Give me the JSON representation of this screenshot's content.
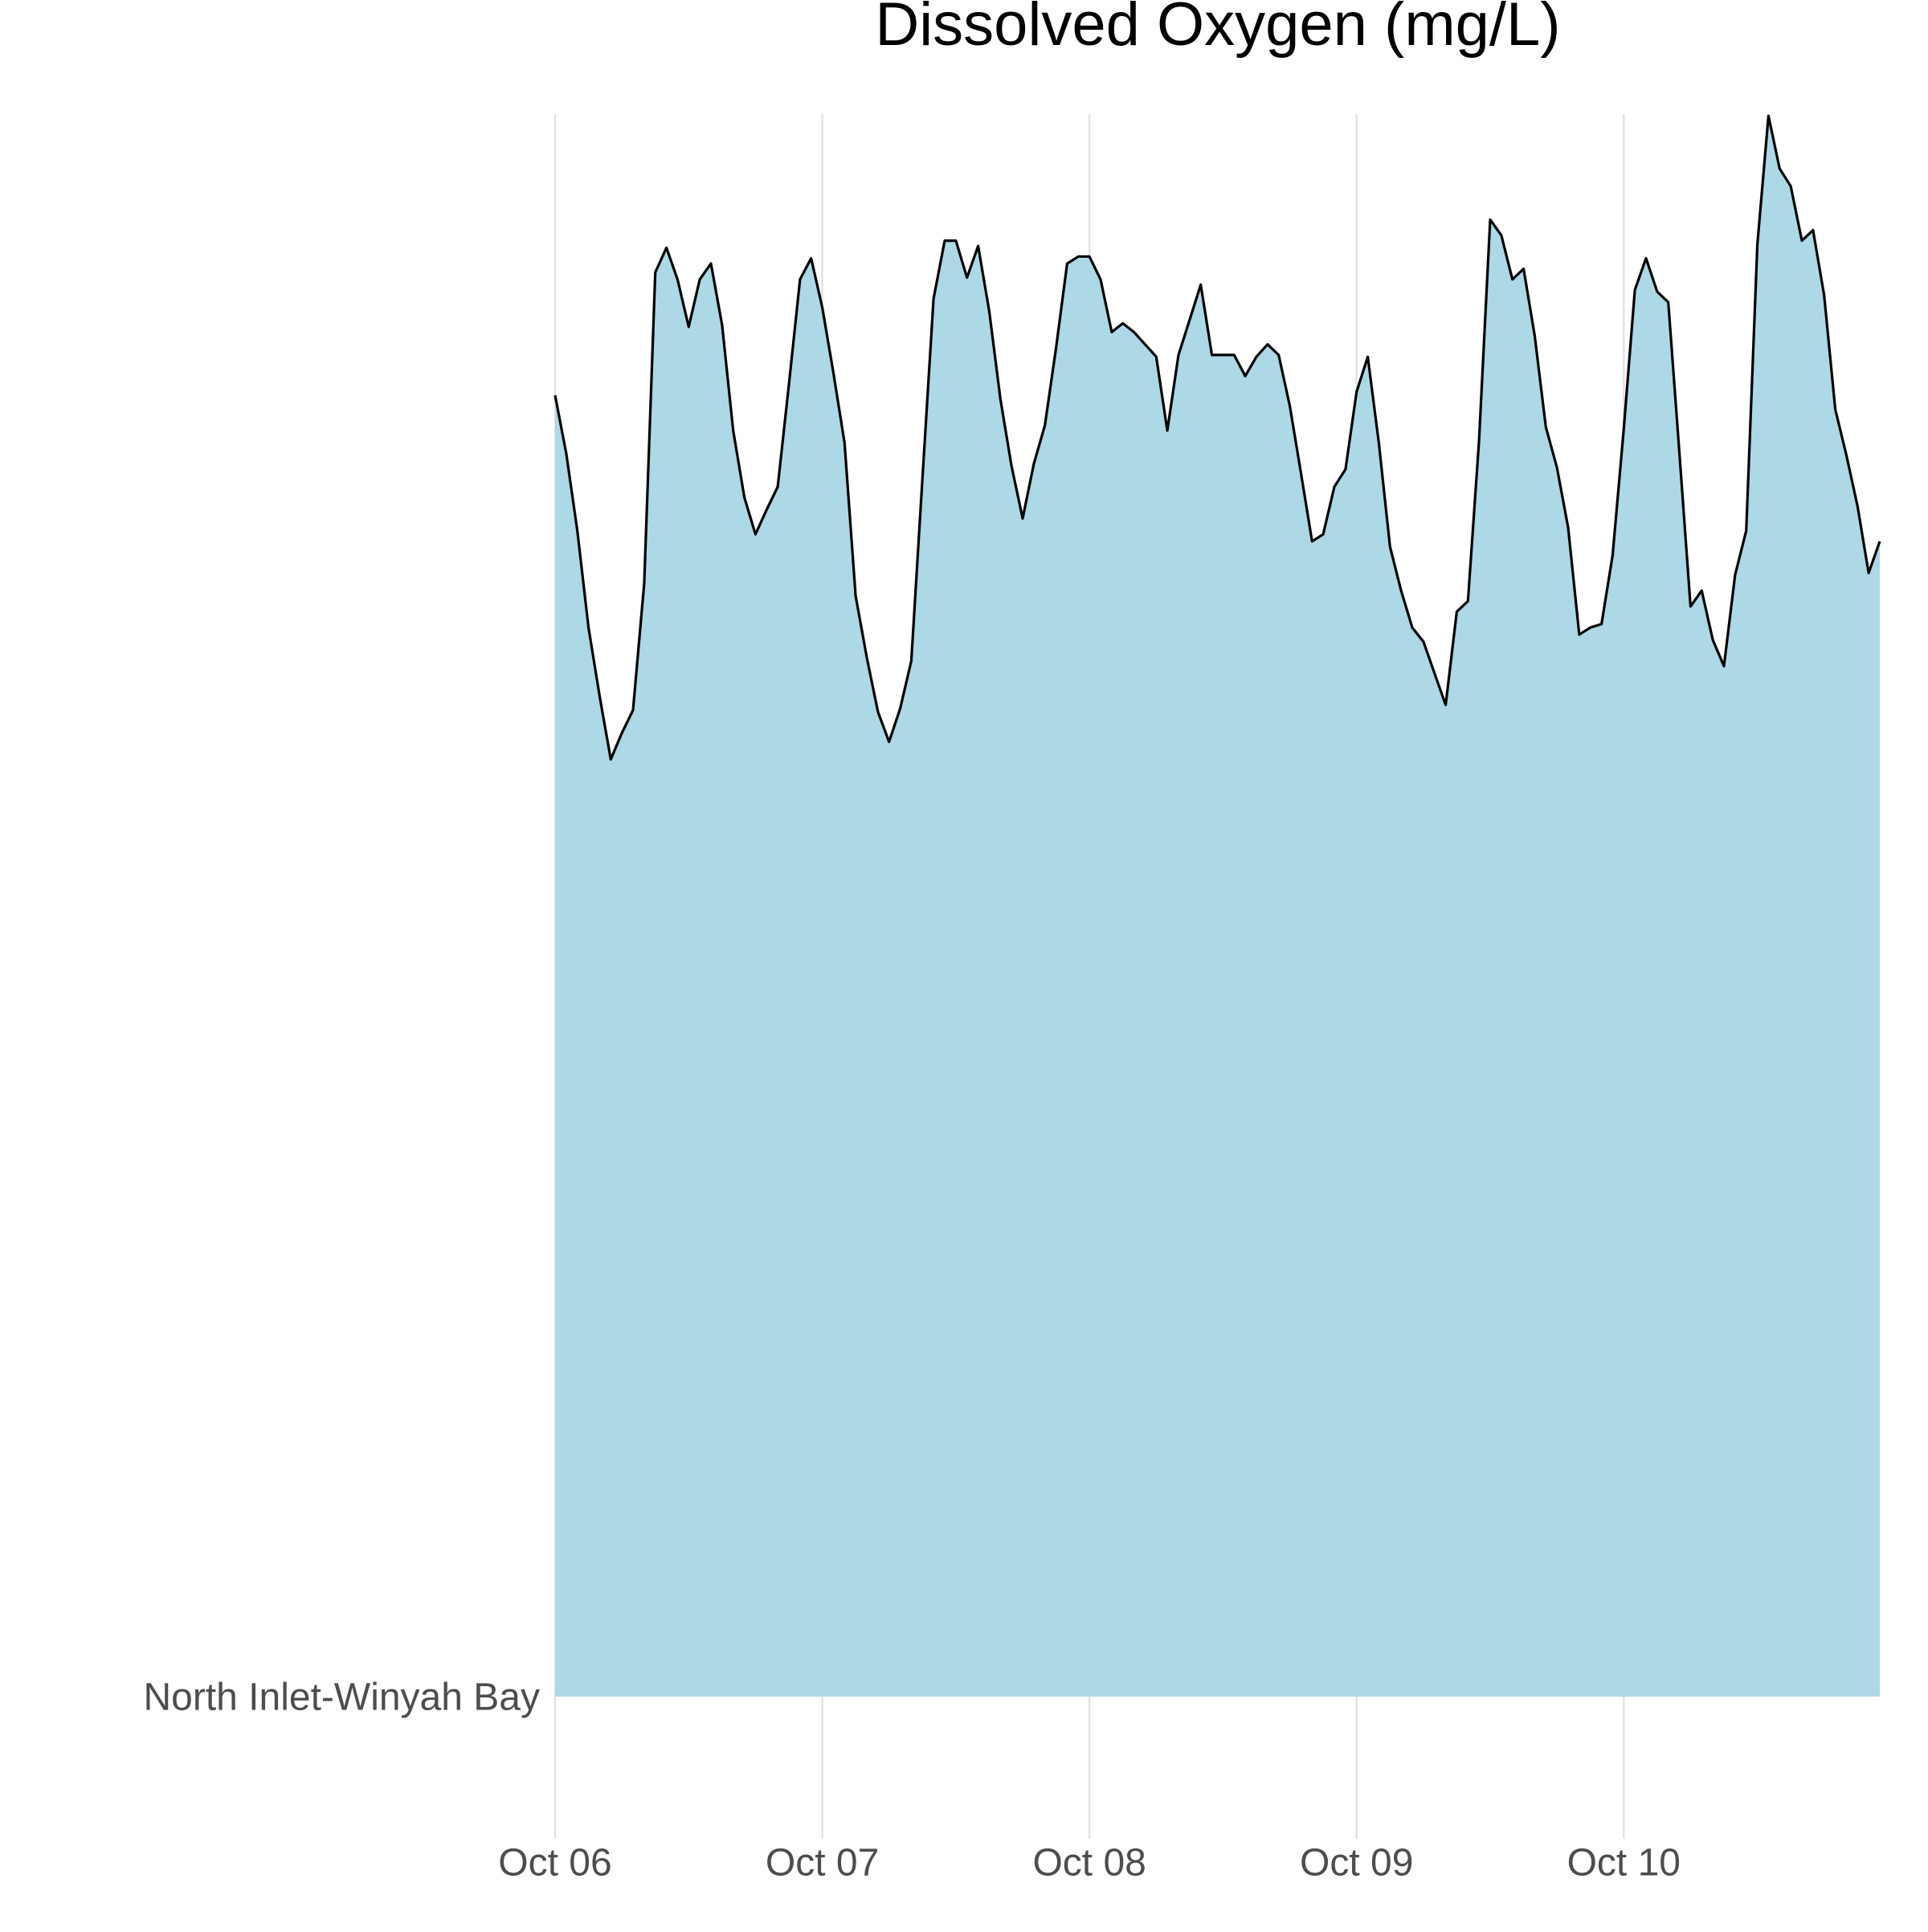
{
  "chart_data": {
    "type": "ridgeline",
    "title": "Dissolved Oxygen (mg/L)",
    "x": [
      0,
      1,
      2,
      3,
      4,
      5,
      6,
      7,
      8,
      9,
      10,
      11,
      12,
      13,
      14,
      15,
      16,
      17,
      18,
      19,
      20,
      21,
      22,
      23,
      24,
      25,
      26,
      27,
      28,
      29,
      30,
      31,
      32,
      33,
      34,
      35,
      36,
      37,
      38,
      39,
      40,
      41,
      42,
      43,
      44,
      45,
      46,
      47,
      48,
      49,
      50,
      51,
      52,
      53,
      54,
      55,
      56,
      57,
      58,
      59,
      60,
      61,
      62,
      63,
      64,
      65,
      66,
      67,
      68,
      69,
      70,
      71,
      72,
      73,
      74,
      75,
      76,
      77,
      78,
      79,
      80,
      81,
      82,
      83,
      84,
      85,
      86,
      87,
      88,
      89,
      90,
      91,
      92,
      93,
      94,
      95,
      96,
      97,
      98,
      99,
      100,
      101,
      102,
      103,
      104,
      105,
      106,
      107,
      108,
      109,
      110,
      111,
      112,
      113,
      114,
      115,
      116,
      117,
      118,
      119
    ],
    "series": [
      {
        "name": "North Inlet-Winyah Bay",
        "color": "#add8e6",
        "line_color": "#000000",
        "values": [
          7.4,
          7.07,
          6.63,
          6.08,
          5.69,
          5.33,
          5.48,
          5.61,
          6.33,
          8.1,
          8.24,
          8.06,
          7.79,
          8.06,
          8.15,
          7.8,
          7.2,
          6.82,
          6.61,
          6.75,
          6.88,
          7.46,
          8.06,
          8.18,
          7.9,
          7.53,
          7.13,
          6.26,
          5.91,
          5.6,
          5.43,
          5.62,
          5.89,
          6.93,
          7.95,
          8.28,
          8.28,
          8.07,
          8.25,
          7.88,
          7.38,
          7.0,
          6.7,
          7.01,
          7.23,
          7.67,
          8.15,
          8.19,
          8.19,
          8.06,
          7.76,
          7.81,
          7.76,
          7.69,
          7.62,
          7.2,
          7.63,
          7.83,
          8.03,
          7.63,
          7.63,
          7.63,
          7.51,
          7.62,
          7.69,
          7.63,
          7.34,
          6.96,
          6.57,
          6.61,
          6.88,
          6.98,
          7.42,
          7.62,
          7.13,
          6.54,
          6.29,
          6.08,
          6.0,
          5.82,
          5.64,
          6.17,
          6.23,
          7.14,
          8.4,
          8.31,
          8.06,
          8.12,
          7.74,
          7.22,
          6.99,
          6.65,
          6.04,
          6.08,
          6.1,
          6.49,
          7.21,
          8.0,
          8.18,
          7.99,
          7.93,
          7.07,
          6.2,
          6.29,
          6.01,
          5.86,
          6.38,
          6.63,
          8.26,
          8.99,
          8.69,
          8.59,
          8.28,
          8.34,
          7.97,
          7.32,
          7.06,
          6.77,
          6.39,
          6.57
        ]
      }
    ],
    "xlim": [
      0,
      119
    ],
    "xticks": [
      {
        "value": 0,
        "label": "Oct 06"
      },
      {
        "value": 24,
        "label": "Oct 07"
      },
      {
        "value": 48,
        "label": "Oct 08"
      },
      {
        "value": 72,
        "label": "Oct 09"
      },
      {
        "value": 96,
        "label": "Oct 10"
      }
    ],
    "ylim": [
      0,
      9
    ],
    "grid": true
  }
}
